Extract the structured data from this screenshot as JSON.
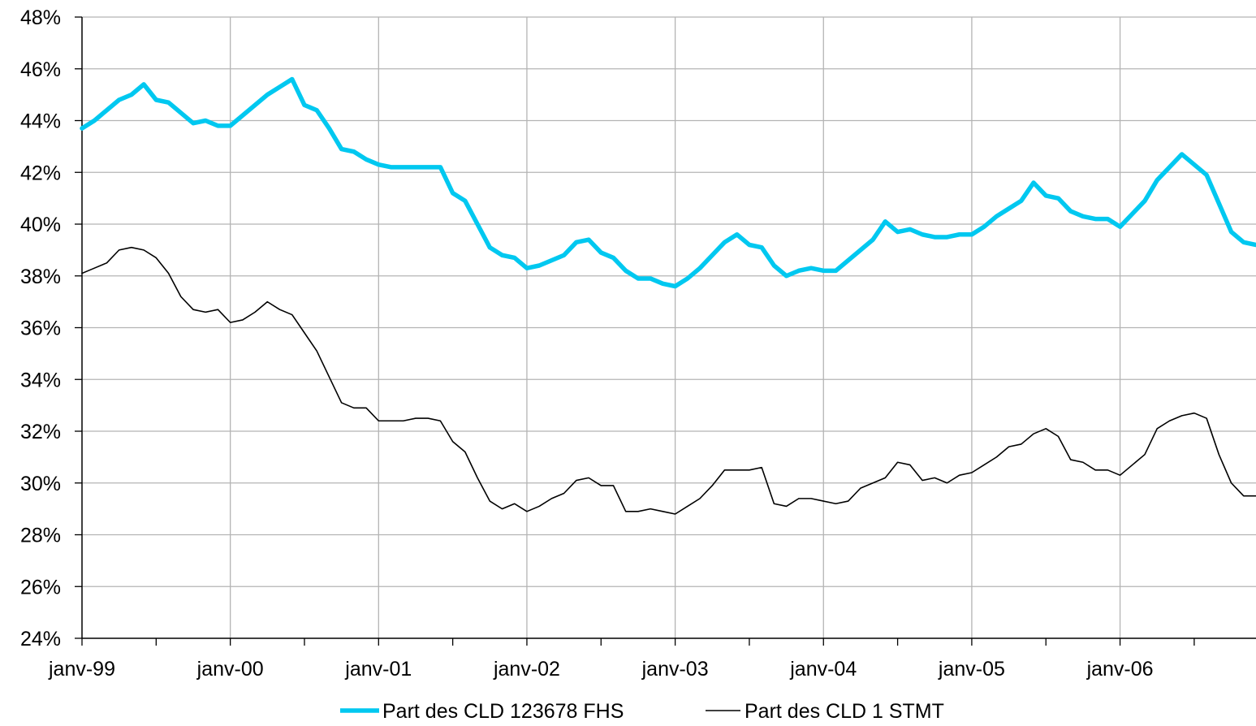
{
  "chart_data": {
    "type": "line",
    "title": "",
    "xlabel": "",
    "ylabel": "",
    "y_format": "percent",
    "ylim": [
      24,
      48
    ],
    "y_ticks": [
      24,
      26,
      28,
      30,
      32,
      34,
      36,
      38,
      40,
      42,
      44,
      46,
      48
    ],
    "y_tick_labels": [
      "24%",
      "26%",
      "28%",
      "30%",
      "32%",
      "34%",
      "36%",
      "38%",
      "40%",
      "42%",
      "44%",
      "46%",
      "48%"
    ],
    "x_range": [
      0,
      95
    ],
    "x_major_ticks": [
      0,
      12,
      24,
      36,
      48,
      60,
      72,
      84
    ],
    "x_tick_labels": [
      "janv-99",
      "janv-00",
      "janv-01",
      "janv-02",
      "janv-03",
      "janv-04",
      "janv-05",
      "janv-06"
    ],
    "x_minor_ticks": [
      6,
      18,
      30,
      42,
      54,
      66,
      78,
      90
    ],
    "grid": "vertical-at-major-x, horizontal-at-y-ticks",
    "legend_position": "bottom-center",
    "series": [
      {
        "name": "Part des CLD 123678 FHS",
        "color": "#00c8f0",
        "width": "thick",
        "values": [
          43.7,
          44.0,
          44.4,
          44.8,
          45.0,
          45.4,
          44.8,
          44.7,
          44.3,
          43.9,
          44.0,
          43.8,
          43.8,
          44.2,
          44.6,
          45.0,
          45.3,
          45.6,
          44.6,
          44.4,
          43.7,
          42.9,
          42.8,
          42.5,
          42.3,
          42.2,
          42.2,
          42.2,
          42.2,
          42.2,
          41.2,
          40.9,
          40.0,
          39.1,
          38.8,
          38.7,
          38.3,
          38.4,
          38.6,
          38.8,
          39.3,
          39.4,
          38.9,
          38.7,
          38.2,
          37.9,
          37.9,
          37.7,
          37.6,
          37.9,
          38.3,
          38.8,
          39.3,
          39.6,
          39.2,
          39.1,
          38.4,
          38.0,
          38.2,
          38.3,
          38.2,
          38.2,
          38.6,
          39.0,
          39.4,
          40.1,
          39.7,
          39.8,
          39.6,
          39.5,
          39.5,
          39.6,
          39.6,
          39.9,
          40.3,
          40.6,
          40.9,
          41.6,
          41.1,
          41.0,
          40.5,
          40.3,
          40.2,
          40.2,
          39.9,
          40.4,
          40.9,
          41.7,
          42.2,
          42.7,
          42.3,
          41.9,
          40.8,
          39.7,
          39.3,
          39.2
        ]
      },
      {
        "name": "Part des CLD 1 STMT",
        "color": "#000000",
        "width": "thin",
        "values": [
          38.1,
          38.3,
          38.5,
          39.0,
          39.1,
          39.0,
          38.7,
          38.1,
          37.2,
          36.7,
          36.6,
          36.7,
          36.2,
          36.3,
          36.6,
          37.0,
          36.7,
          36.5,
          35.8,
          35.1,
          34.1,
          33.1,
          32.9,
          32.9,
          32.4,
          32.4,
          32.4,
          32.5,
          32.5,
          32.4,
          31.6,
          31.2,
          30.2,
          29.3,
          29.0,
          29.2,
          28.9,
          29.1,
          29.4,
          29.6,
          30.1,
          30.2,
          29.9,
          29.9,
          28.9,
          28.9,
          29.0,
          28.9,
          28.8,
          29.1,
          29.4,
          29.9,
          30.5,
          30.5,
          30.5,
          30.6,
          29.2,
          29.1,
          29.4,
          29.4,
          29.3,
          29.2,
          29.3,
          29.8,
          30.0,
          30.2,
          30.8,
          30.7,
          30.1,
          30.2,
          30.0,
          30.3,
          30.4,
          30.7,
          31.0,
          31.4,
          31.5,
          31.9,
          32.1,
          31.8,
          30.9,
          30.8,
          30.5,
          30.5,
          30.3,
          30.7,
          31.1,
          32.1,
          32.4,
          32.6,
          32.7,
          32.5,
          31.1,
          30.0,
          29.5,
          29.5
        ]
      }
    ]
  }
}
